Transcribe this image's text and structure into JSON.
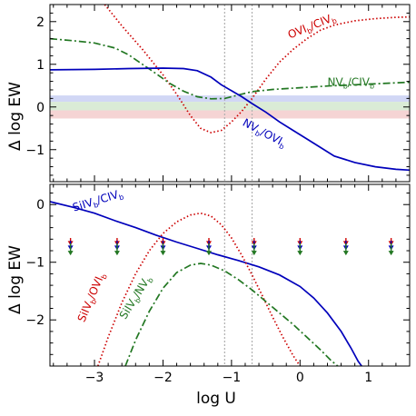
{
  "chart_data": [
    {
      "type": "line",
      "panel": "top",
      "xlabel": "",
      "ylabel": "Δ log EW",
      "xlim": [
        -3.65,
        1.6
      ],
      "ylim": [
        -1.75,
        2.4
      ],
      "yticks": [
        -1,
        0,
        1,
        2
      ],
      "ytick_labels": [
        "−1",
        "0",
        "1",
        "2"
      ],
      "xticks": [
        -3,
        -2,
        -1,
        0,
        1
      ],
      "grid": false,
      "vlines": [
        -1.1,
        -0.7
      ],
      "bands": [
        {
          "y0": 0.12,
          "y1": 0.27,
          "color": "#c9d0f3"
        },
        {
          "y0": -0.08,
          "y1": 0.12,
          "color": "#d4e7cf"
        },
        {
          "y0": -0.27,
          "y1": -0.08,
          "color": "#f3cdcd"
        }
      ],
      "series": [
        {
          "name": "OVI_b/CIV_b",
          "label_main": "OVI",
          "label_sub1": "b",
          "label_mid": "/CIV",
          "label_sub2": "b",
          "label_x": -0.15,
          "label_y": 1.6,
          "label_angle": -22,
          "color": "#cc0000",
          "style": "dotted",
          "x": [
            -2.85,
            -2.6,
            -2.3,
            -2.0,
            -1.8,
            -1.6,
            -1.45,
            -1.3,
            -1.15,
            -1.0,
            -0.85,
            -0.7,
            -0.5,
            -0.3,
            -0.1,
            0.1,
            0.3,
            0.5,
            0.8,
            1.1,
            1.4,
            1.6
          ],
          "y": [
            2.4,
            1.9,
            1.35,
            0.75,
            0.3,
            -0.2,
            -0.5,
            -0.6,
            -0.55,
            -0.35,
            -0.1,
            0.2,
            0.65,
            1.05,
            1.35,
            1.6,
            1.8,
            1.92,
            2.02,
            2.07,
            2.1,
            2.11
          ]
        },
        {
          "name": "NV_b/CIV_b",
          "label_main": "NV",
          "label_sub1": "b",
          "label_mid": "/CIV",
          "label_sub2": "b",
          "label_x": 0.4,
          "label_y": 0.5,
          "label_angle": 0,
          "color": "#227722",
          "style": "dashdot",
          "x": [
            -3.65,
            -3.3,
            -3.0,
            -2.7,
            -2.5,
            -2.3,
            -2.1,
            -1.9,
            -1.7,
            -1.5,
            -1.3,
            -1.1,
            -0.9,
            -0.7,
            -0.4,
            0.0,
            0.4,
            0.8,
            1.2,
            1.6
          ],
          "y": [
            1.6,
            1.55,
            1.5,
            1.38,
            1.22,
            1.0,
            0.78,
            0.55,
            0.37,
            0.24,
            0.19,
            0.2,
            0.28,
            0.36,
            0.41,
            0.45,
            0.49,
            0.52,
            0.55,
            0.58
          ]
        },
        {
          "name": "NV_b/OVI_b",
          "label_main": "NV",
          "label_sub1": "b",
          "label_mid": "/OVI",
          "label_sub2": "b",
          "label_x": -0.85,
          "label_y": -0.42,
          "label_angle": 28,
          "color": "#0000bb",
          "style": "solid",
          "x": [
            -3.65,
            -3.0,
            -2.5,
            -2.0,
            -1.7,
            -1.5,
            -1.3,
            -1.15,
            -1.0,
            -0.85,
            -0.7,
            -0.5,
            -0.3,
            -0.1,
            0.1,
            0.3,
            0.5,
            0.8,
            1.1,
            1.4,
            1.6
          ],
          "y": [
            0.87,
            0.88,
            0.9,
            0.91,
            0.9,
            0.85,
            0.7,
            0.52,
            0.38,
            0.24,
            0.08,
            -0.12,
            -0.35,
            -0.55,
            -0.75,
            -0.95,
            -1.15,
            -1.3,
            -1.4,
            -1.46,
            -1.48
          ]
        }
      ]
    },
    {
      "type": "line",
      "panel": "bottom",
      "xlabel": "log U",
      "ylabel": "Δ log EW",
      "xlim": [
        -3.65,
        1.6
      ],
      "ylim": [
        -2.8,
        0.35
      ],
      "yticks": [
        -2,
        -1,
        0
      ],
      "ytick_labels": [
        "−2",
        "−1",
        "0"
      ],
      "xticks": [
        -3,
        -2,
        -1,
        0,
        1
      ],
      "xtick_labels": [
        "−3",
        "−2",
        "−1",
        "0",
        "1"
      ],
      "grid": false,
      "vlines": [
        -1.1,
        -0.7
      ],
      "upper_limits": {
        "x": [
          -3.35,
          -2.67,
          -2.0,
          -1.33,
          -0.67,
          0.0,
          0.67,
          1.33
        ],
        "y_top": -0.58,
        "markers": [
          {
            "color": "#cc0000",
            "y": -0.6
          },
          {
            "color": "#0000bb",
            "y": -0.68
          },
          {
            "color": "#227722",
            "y": -0.77
          }
        ]
      },
      "series": [
        {
          "name": "SiIV_b/CIV_b",
          "label_main": "SiIV",
          "label_sub1": "b",
          "label_mid": "/CIV",
          "label_sub2": "b",
          "label_x": -3.3,
          "label_y": -0.12,
          "label_angle": -17,
          "color": "#0000bb",
          "style": "solid",
          "x": [
            -3.65,
            -3.3,
            -3.0,
            -2.7,
            -2.4,
            -2.1,
            -1.8,
            -1.5,
            -1.2,
            -0.9,
            -0.6,
            -0.3,
            0.0,
            0.2,
            0.4,
            0.6,
            0.75,
            0.85,
            0.9
          ],
          "y": [
            0.05,
            -0.05,
            -0.15,
            -0.28,
            -0.4,
            -0.53,
            -0.65,
            -0.76,
            -0.87,
            -0.97,
            -1.08,
            -1.22,
            -1.42,
            -1.62,
            -1.88,
            -2.2,
            -2.5,
            -2.72,
            -2.8
          ]
        },
        {
          "name": "SiIV_b/OVI_b",
          "label_main": "SiIV",
          "label_sub1": "b",
          "label_mid": "/OVI",
          "label_sub2": "b",
          "label_x": -3.15,
          "label_y": -2.05,
          "label_angle": -67,
          "color": "#cc0000",
          "style": "dotted",
          "x": [
            -2.95,
            -2.8,
            -2.6,
            -2.4,
            -2.2,
            -2.0,
            -1.8,
            -1.6,
            -1.45,
            -1.3,
            -1.15,
            -1.0,
            -0.85,
            -0.7,
            -0.55,
            -0.4,
            -0.25,
            -0.1,
            0.0
          ],
          "y": [
            -2.8,
            -2.3,
            -1.7,
            -1.2,
            -0.8,
            -0.5,
            -0.3,
            -0.18,
            -0.15,
            -0.2,
            -0.35,
            -0.58,
            -0.88,
            -1.22,
            -1.58,
            -1.95,
            -2.3,
            -2.62,
            -2.8
          ]
        },
        {
          "name": "SiIV_b/NV_b",
          "label_main": "SiIV",
          "label_sub1": "b",
          "label_mid": "/NV",
          "label_sub2": "b",
          "label_x": -2.55,
          "label_y": -2.0,
          "label_angle": -58,
          "color": "#227722",
          "style": "dashdot",
          "x": [
            -2.55,
            -2.4,
            -2.2,
            -2.0,
            -1.8,
            -1.6,
            -1.45,
            -1.3,
            -1.1,
            -0.9,
            -0.7,
            -0.5,
            -0.3,
            -0.1,
            0.1,
            0.3,
            0.45,
            0.55
          ],
          "y": [
            -2.8,
            -2.35,
            -1.85,
            -1.45,
            -1.18,
            -1.05,
            -1.02,
            -1.05,
            -1.15,
            -1.3,
            -1.48,
            -1.68,
            -1.88,
            -2.08,
            -2.3,
            -2.52,
            -2.7,
            -2.8
          ]
        }
      ]
    }
  ]
}
